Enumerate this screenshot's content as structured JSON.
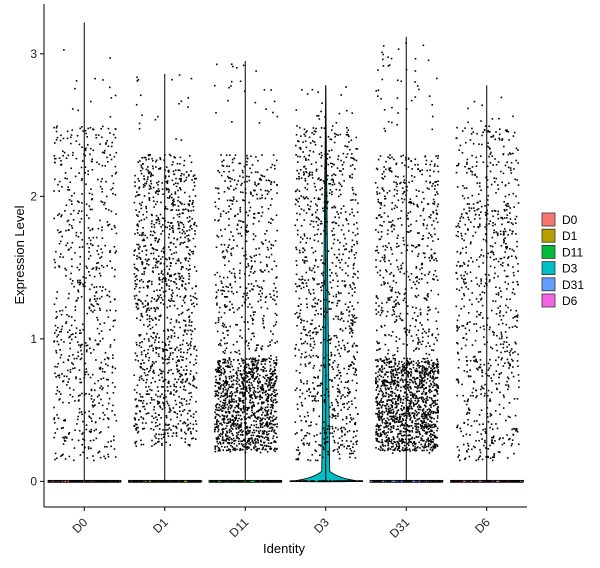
{
  "chart_data": {
    "type": "violin",
    "xlabel": "Identity",
    "ylabel": "Expression Level",
    "categories": [
      "D0",
      "D1",
      "D11",
      "D3",
      "D31",
      "D6"
    ],
    "ylim": [
      -0.18,
      3.35
    ],
    "yticks": [
      0,
      1,
      2,
      3
    ],
    "colors": [
      "#F8766D",
      "#B79F00",
      "#00BA38",
      "#00BFC4",
      "#619CFF",
      "#F564E3"
    ],
    "max_values": [
      3.22,
      2.86,
      2.95,
      2.78,
      3.12,
      2.78
    ],
    "nonzero_point_counts": [
      700,
      1200,
      1600,
      1000,
      1800,
      800
    ],
    "point_y_range": [
      0.15,
      2.5
    ],
    "legend": {
      "position": "right",
      "entries": [
        "D0",
        "D1",
        "D11",
        "D3",
        "D31",
        "D6"
      ]
    },
    "grid": false
  }
}
